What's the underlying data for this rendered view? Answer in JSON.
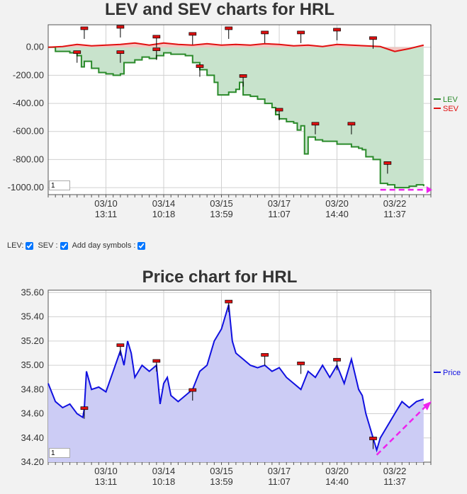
{
  "colors": {
    "lev": "#2a8a2a",
    "sev": "#e01010",
    "price": "#1010e0",
    "lev_fill": "#c8e3cc",
    "sev_fill": "#f3c6c2",
    "price_fill": "#ccccf5",
    "marker": "#e01010",
    "arrow": "#ee22ee"
  },
  "controls": {
    "lev_label": "LEV:",
    "sev_label": "SEV :",
    "day_label": "Add day symbols :"
  },
  "chart_data": [
    {
      "type": "line",
      "title": "LEV and SEV charts for HRL",
      "grid": true,
      "legend_placement": "right",
      "zoom_value": "1",
      "y_ticks": [
        "0.00",
        "-200.00",
        "-400.00",
        "-600.00",
        "-800.00",
        "-1000.00"
      ],
      "ylim": [
        -1050,
        160
      ],
      "x_ticks": [
        {
          "date": "03/10",
          "time": "13:11"
        },
        {
          "date": "03/14",
          "time": "10:18"
        },
        {
          "date": "03/15",
          "time": "13:59"
        },
        {
          "date": "03/17",
          "time": "11:07"
        },
        {
          "date": "03/20",
          "time": "14:40"
        },
        {
          "date": "03/22",
          "time": "11:37"
        }
      ],
      "x_tick_positions": [
        8,
        16,
        24,
        32,
        40,
        48
      ],
      "xlim": [
        0,
        53
      ],
      "series": [
        {
          "name": "LEV",
          "x": [
            0,
            1,
            2,
            3,
            4,
            4.6,
            5,
            6,
            7,
            8,
            9,
            10,
            10.5,
            11,
            12,
            13,
            14,
            15,
            16,
            17,
            18,
            19,
            20,
            21,
            22,
            23,
            23.5,
            24,
            25,
            26,
            26.5,
            27,
            28,
            29,
            30,
            31,
            31.5,
            32,
            33,
            34,
            34.5,
            35,
            35.5,
            36,
            37,
            38,
            39,
            40,
            41,
            42,
            43,
            43.5,
            44,
            45,
            46,
            47,
            48,
            49,
            50,
            51,
            52
          ],
          "values": [
            0,
            -30,
            -30,
            -40,
            -60,
            -140,
            -100,
            -150,
            -180,
            -190,
            -200,
            -190,
            -110,
            -110,
            -90,
            -70,
            -80,
            -60,
            -40,
            -50,
            -50,
            -60,
            -110,
            -160,
            -200,
            -250,
            -340,
            -340,
            -320,
            -300,
            -250,
            -340,
            -350,
            -370,
            -400,
            -430,
            -480,
            -510,
            -530,
            -540,
            -590,
            -560,
            -760,
            -640,
            -660,
            -670,
            -670,
            -690,
            -690,
            -710,
            -720,
            -730,
            -780,
            -800,
            -970,
            -980,
            -1000,
            -1000,
            -990,
            -980,
            -990
          ]
        },
        {
          "name": "SEV",
          "x": [
            0,
            2,
            4,
            6,
            8,
            10,
            12,
            14,
            16,
            18,
            20,
            22,
            24,
            26,
            28,
            30,
            32,
            34,
            36,
            38,
            40,
            42,
            44,
            46,
            48,
            50,
            52
          ],
          "values": [
            0,
            5,
            20,
            10,
            15,
            20,
            30,
            15,
            30,
            20,
            15,
            25,
            15,
            20,
            15,
            25,
            20,
            10,
            15,
            5,
            20,
            15,
            10,
            5,
            -30,
            -10,
            15
          ]
        }
      ],
      "day_markers_lev": [
        [
          4,
          -40
        ],
        [
          10,
          -40
        ],
        [
          15,
          -20
        ],
        [
          21,
          -140
        ],
        [
          27,
          -210
        ],
        [
          32,
          -450
        ],
        [
          37,
          -550
        ],
        [
          42,
          -550
        ],
        [
          47,
          -830
        ]
      ],
      "day_markers_sev": [
        [
          5,
          130
        ],
        [
          10,
          140
        ],
        [
          15,
          70
        ],
        [
          20,
          90
        ],
        [
          25,
          130
        ],
        [
          30,
          100
        ],
        [
          35,
          100
        ],
        [
          40,
          120
        ],
        [
          45,
          60
        ]
      ]
    },
    {
      "type": "area",
      "title": "Price chart for HRL",
      "grid": true,
      "legend_placement": "right",
      "zoom_value": "1",
      "y_ticks": [
        "35.60",
        "35.40",
        "35.20",
        "35.00",
        "34.80",
        "34.60",
        "34.40",
        "34.20"
      ],
      "ylim": [
        34.2,
        35.62
      ],
      "x_ticks": [
        {
          "date": "03/10",
          "time": "13:11"
        },
        {
          "date": "03/14",
          "time": "10:18"
        },
        {
          "date": "03/15",
          "time": "13:59"
        },
        {
          "date": "03/17",
          "time": "11:07"
        },
        {
          "date": "03/20",
          "time": "14:40"
        },
        {
          "date": "03/22",
          "time": "11:37"
        }
      ],
      "x_tick_positions": [
        8,
        16,
        24,
        32,
        40,
        48
      ],
      "xlim": [
        0,
        53
      ],
      "series": [
        {
          "name": "Price",
          "x": [
            0,
            1,
            2,
            3,
            4,
            4.8,
            5,
            5.3,
            6,
            7,
            8,
            9,
            10,
            10.5,
            11,
            11.5,
            12,
            13,
            14,
            15,
            15.5,
            16,
            16.5,
            17,
            18,
            19,
            20,
            21,
            22,
            23,
            24,
            25,
            25.5,
            26,
            27,
            28,
            29,
            30,
            31,
            32,
            33,
            34,
            35,
            36,
            37,
            38,
            39,
            40,
            41,
            42,
            43,
            43.5,
            44,
            45,
            45.5,
            46,
            47,
            48,
            49,
            50,
            51,
            52
          ],
          "values": [
            34.85,
            34.7,
            34.65,
            34.68,
            34.6,
            34.57,
            34.64,
            34.95,
            34.8,
            34.82,
            34.78,
            34.95,
            35.12,
            35.0,
            35.2,
            35.1,
            34.9,
            35.0,
            34.95,
            35.0,
            34.68,
            34.85,
            34.9,
            34.75,
            34.7,
            34.75,
            34.8,
            34.95,
            35.0,
            35.2,
            35.3,
            35.5,
            35.2,
            35.1,
            35.05,
            35.0,
            34.98,
            35.0,
            34.95,
            34.98,
            34.9,
            34.85,
            34.8,
            34.95,
            34.9,
            35.0,
            34.9,
            35.0,
            34.85,
            35.05,
            34.8,
            34.75,
            34.6,
            34.4,
            34.3,
            34.4,
            34.5,
            34.6,
            34.7,
            34.65,
            34.7,
            34.72
          ]
        }
      ],
      "day_markers": [
        [
          5,
          34.64
        ],
        [
          10,
          35.16
        ],
        [
          15,
          35.03
        ],
        [
          20,
          34.79
        ],
        [
          25,
          35.52
        ],
        [
          30,
          35.08
        ],
        [
          35,
          35.01
        ],
        [
          40,
          35.04
        ],
        [
          45,
          34.39
        ]
      ]
    }
  ]
}
